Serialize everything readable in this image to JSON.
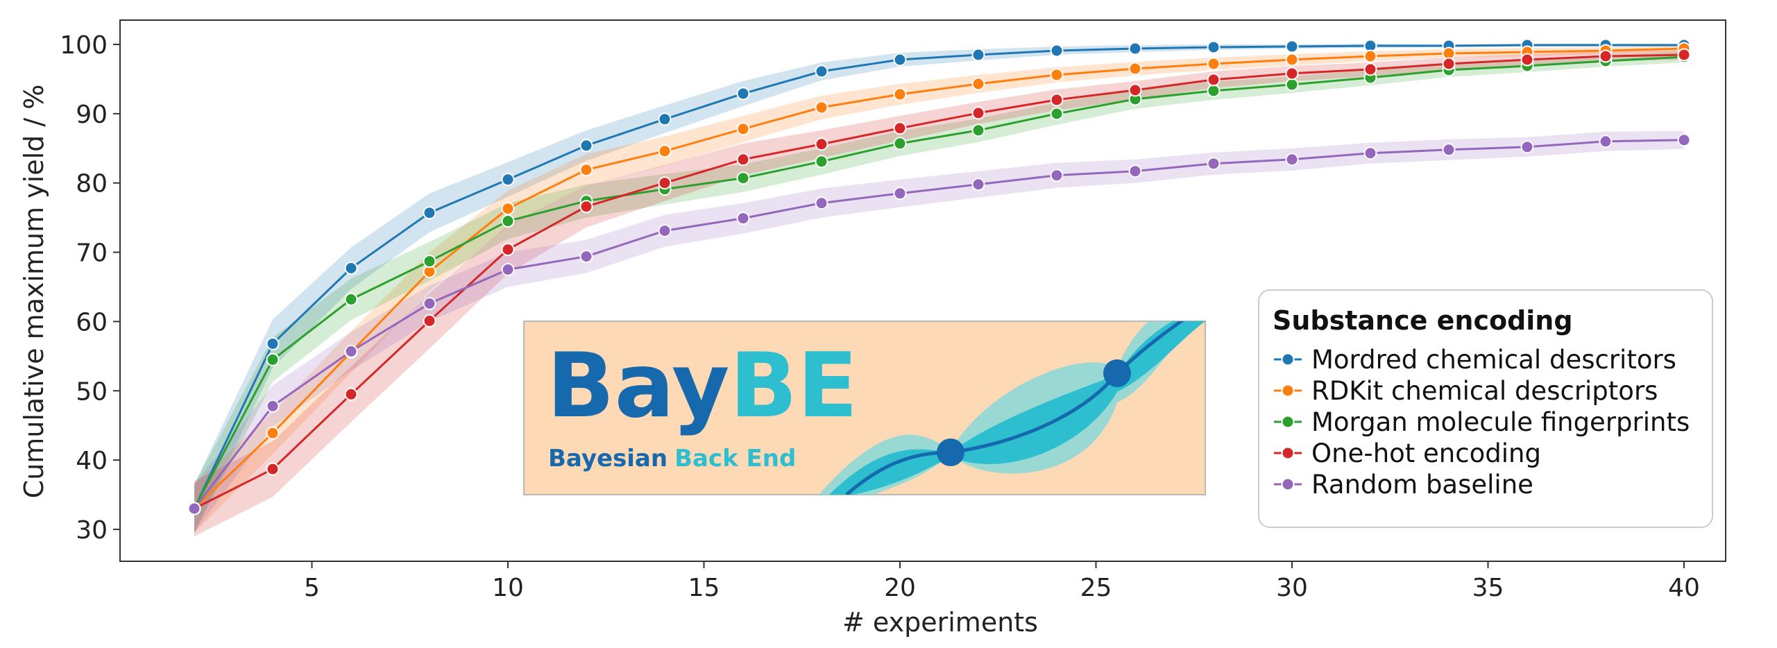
{
  "chart_data": {
    "type": "line",
    "title": "",
    "xlabel": "# experiments",
    "ylabel": "Cumulative maximum yield / %",
    "xlim": [
      0,
      41
    ],
    "ylim": [
      25,
      104
    ],
    "xticks": [
      5,
      10,
      15,
      20,
      25,
      30,
      35,
      40
    ],
    "yticks": [
      30,
      40,
      50,
      60,
      70,
      80,
      90,
      100
    ],
    "grid": false,
    "legend": {
      "title": "Substance encoding",
      "placement": "right"
    },
    "x": [
      2,
      4,
      6,
      8,
      10,
      12,
      14,
      16,
      18,
      20,
      22,
      24,
      26,
      28,
      30,
      32,
      34,
      36,
      38,
      40
    ],
    "series": [
      {
        "name": "Mordred chemical descritors",
        "color": "#1f77b4",
        "values": [
          33,
          56.8,
          67.7,
          75.7,
          80.5,
          85.4,
          89.2,
          92.9,
          96.1,
          97.8,
          98.5,
          99.1,
          99.4,
          99.6,
          99.7,
          99.8,
          99.8,
          99.9,
          99.9,
          99.9
        ],
        "band": [
          3.5,
          3.5,
          3.0,
          2.8,
          2.5,
          2.2,
          2.0,
          1.8,
          1.3,
          1.0,
          0.8,
          0.6,
          0.5,
          0.4,
          0.3,
          0.3,
          0.2,
          0.2,
          0.2,
          0.2
        ]
      },
      {
        "name": "RDKit chemical descriptors",
        "color": "#ff7f0e",
        "values": [
          33,
          43.9,
          55.6,
          67.2,
          76.3,
          81.9,
          84.6,
          87.8,
          90.9,
          92.8,
          94.3,
          95.6,
          96.5,
          97.2,
          97.8,
          98.3,
          98.7,
          98.9,
          99.1,
          99.4
        ],
        "band": [
          3.5,
          3.0,
          3.0,
          2.8,
          2.6,
          2.3,
          2.1,
          1.9,
          1.7,
          1.5,
          1.3,
          1.1,
          1.0,
          0.9,
          0.8,
          0.7,
          0.6,
          0.6,
          0.5,
          0.5
        ]
      },
      {
        "name": "Morgan molecule fingerprints",
        "color": "#2ca02c",
        "values": [
          33,
          54.5,
          63.2,
          68.7,
          74.5,
          77.4,
          79.1,
          80.7,
          83.1,
          85.7,
          87.6,
          90.0,
          92.1,
          93.3,
          94.2,
          95.2,
          96.3,
          96.9,
          97.6,
          98.2
        ],
        "band": [
          3.5,
          3.2,
          3.0,
          2.8,
          2.6,
          2.4,
          2.2,
          2.0,
          1.9,
          1.8,
          1.7,
          1.6,
          1.4,
          1.3,
          1.2,
          1.1,
          1.0,
          0.9,
          0.8,
          0.8
        ]
      },
      {
        "name": "One-hot encoding",
        "color": "#d62728",
        "values": [
          33,
          38.7,
          49.5,
          60.1,
          70.4,
          76.6,
          80.0,
          83.4,
          85.6,
          87.9,
          90.1,
          92.0,
          93.4,
          94.9,
          95.8,
          96.4,
          97.2,
          97.8,
          98.3,
          98.5
        ],
        "band": [
          4.0,
          4.0,
          4.0,
          4.0,
          3.5,
          3.0,
          2.6,
          2.3,
          2.0,
          1.8,
          1.6,
          1.5,
          1.3,
          1.2,
          1.1,
          1.0,
          0.9,
          0.8,
          0.7,
          0.7
        ]
      },
      {
        "name": "Random baseline",
        "color": "#9467bd",
        "values": [
          33,
          47.8,
          55.7,
          62.6,
          67.5,
          69.4,
          73.1,
          74.9,
          77.1,
          78.5,
          79.8,
          81.1,
          81.7,
          82.8,
          83.4,
          84.3,
          84.8,
          85.2,
          86.0,
          86.2
        ],
        "band": [
          3.5,
          3.0,
          2.8,
          2.6,
          2.5,
          2.4,
          2.3,
          2.2,
          2.1,
          2.0,
          1.9,
          1.8,
          1.7,
          1.6,
          1.6,
          1.5,
          1.5,
          1.4,
          1.4,
          1.3
        ]
      }
    ]
  },
  "logo": {
    "name_part1": "Bay",
    "name_part2": "BE",
    "subtitle_part1": "Bayesian",
    "subtitle_part2": "Back End",
    "color_dark": "#1769ae",
    "color_light": "#2dbfcf",
    "color_background": "#fdd9b5"
  }
}
